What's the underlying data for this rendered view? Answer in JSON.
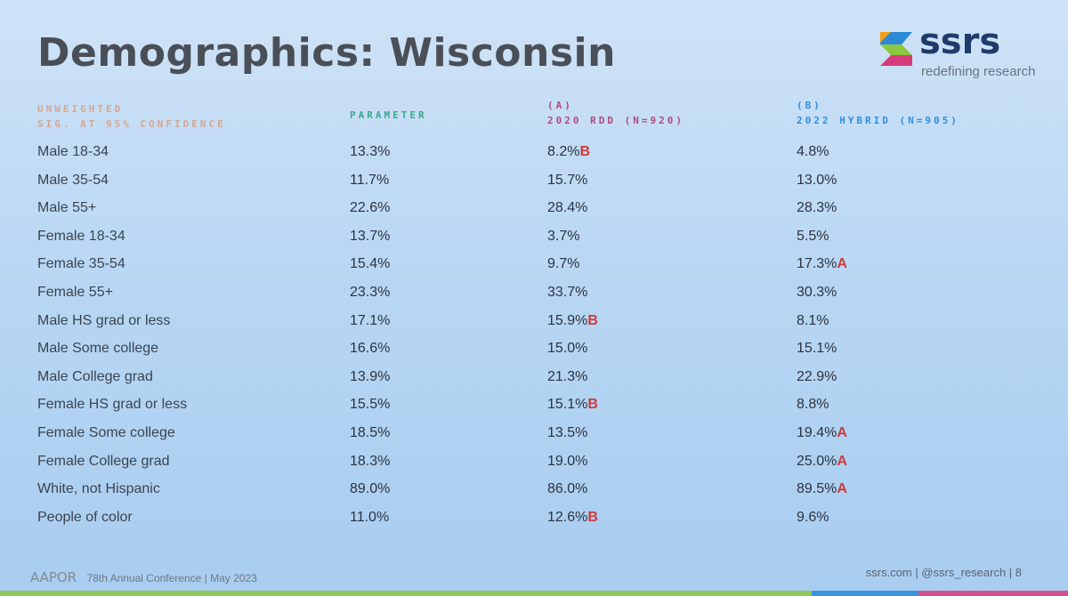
{
  "slide": {
    "title": "Demographics: Wisconsin",
    "logo": {
      "word": "ssrs",
      "tagline": "redefining research"
    },
    "headers": {
      "note_line1": "UNWEIGHTED",
      "note_line2": "SIG. AT 95% CONFIDENCE",
      "parameter": "PARAMETER",
      "a_code": "(A)",
      "a_label": "2020 RDD (N=920)",
      "b_code": "(B)",
      "b_label": "2022 HYBRID (N=905)"
    },
    "rows": [
      {
        "label": "Male 18-34",
        "param": "13.3%",
        "a": "8.2%",
        "a_sig": "B",
        "b": "4.8%",
        "b_sig": ""
      },
      {
        "label": "Male 35-54",
        "param": "11.7%",
        "a": "15.7%",
        "a_sig": "",
        "b": "13.0%",
        "b_sig": ""
      },
      {
        "label": "Male 55+",
        "param": "22.6%",
        "a": "28.4%",
        "a_sig": "",
        "b": "28.3%",
        "b_sig": ""
      },
      {
        "label": "Female 18-34",
        "param": "13.7%",
        "a": "3.7%",
        "a_sig": "",
        "b": "5.5%",
        "b_sig": ""
      },
      {
        "label": "Female 35-54",
        "param": "15.4%",
        "a": "9.7%",
        "a_sig": "",
        "b": "17.3%",
        "b_sig": "A"
      },
      {
        "label": "Female 55+",
        "param": "23.3%",
        "a": "33.7%",
        "a_sig": "",
        "b": "30.3%",
        "b_sig": ""
      },
      {
        "label": "Male HS grad or less",
        "param": "17.1%",
        "a": "15.9%",
        "a_sig": "B",
        "b": "8.1%",
        "b_sig": ""
      },
      {
        "label": "Male Some college",
        "param": "16.6%",
        "a": "15.0%",
        "a_sig": "",
        "b": "15.1%",
        "b_sig": ""
      },
      {
        "label": "Male College grad",
        "param": "13.9%",
        "a": "21.3%",
        "a_sig": "",
        "b": "22.9%",
        "b_sig": ""
      },
      {
        "label": "Female HS grad or less",
        "param": "15.5%",
        "a": "15.1%",
        "a_sig": "B",
        "b": "8.8%",
        "b_sig": ""
      },
      {
        "label": "Female Some college",
        "param": "18.5%",
        "a": "13.5%",
        "a_sig": "",
        "b": "19.4%",
        "b_sig": "A"
      },
      {
        "label": "Female College grad",
        "param": "18.3%",
        "a": "19.0%",
        "a_sig": "",
        "b": "25.0%",
        "b_sig": "A"
      },
      {
        "label": "White, not Hispanic",
        "param": "89.0%",
        "a": "86.0%",
        "a_sig": "",
        "b": "89.5%",
        "b_sig": "A"
      },
      {
        "label": "People of color",
        "param": "11.0%",
        "a": "12.6%",
        "a_sig": "B",
        "b": "9.6%",
        "b_sig": ""
      }
    ],
    "footer": {
      "org": "AAPOR",
      "event": "78th Annual Conference | May 2023",
      "right": "ssrs.com | @ssrs_research | 8"
    }
  }
}
